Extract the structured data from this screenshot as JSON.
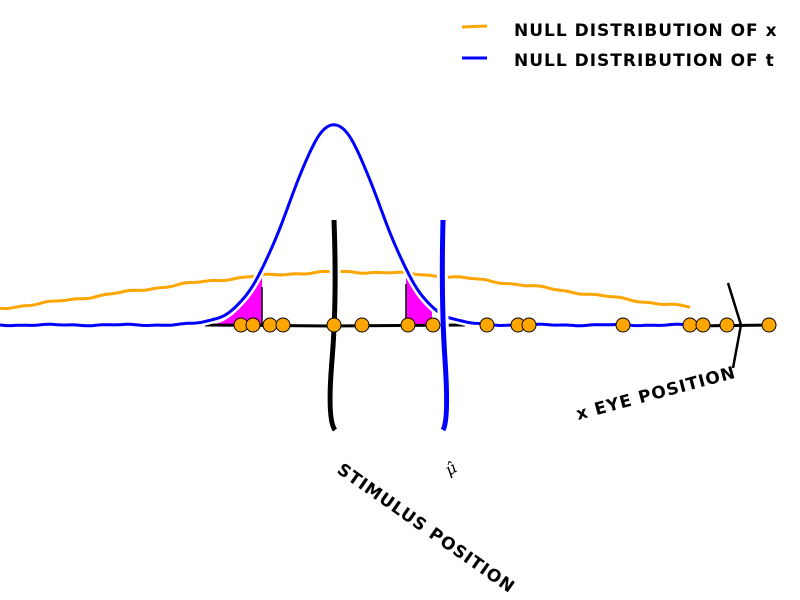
{
  "legend": {
    "items": [
      {
        "label": "NULL DISTRIBUTION OF x",
        "color": "#ffa500"
      },
      {
        "label": "NULL DISTRIBUTION OF t",
        "color": "#0000ff"
      }
    ]
  },
  "labels": {
    "stimulus": "STIMULUS POSITION",
    "mu_hat": "μ̂",
    "eye": "x EYE POSITION"
  },
  "colors": {
    "samples": "#ffa500",
    "tails": "#ff00ff",
    "axis": "#000000"
  },
  "diagram": {
    "stimulus_position": 0,
    "mu_hat": 2.18,
    "eye_position": 8.14,
    "samples": [
      -1.86,
      -1.62,
      -1.28,
      -1.02,
      0,
      0.56,
      1.48,
      1.98,
      3.06,
      3.68,
      3.9,
      5.78,
      7.12,
      7.38,
      7.86,
      8.7
    ]
  }
}
